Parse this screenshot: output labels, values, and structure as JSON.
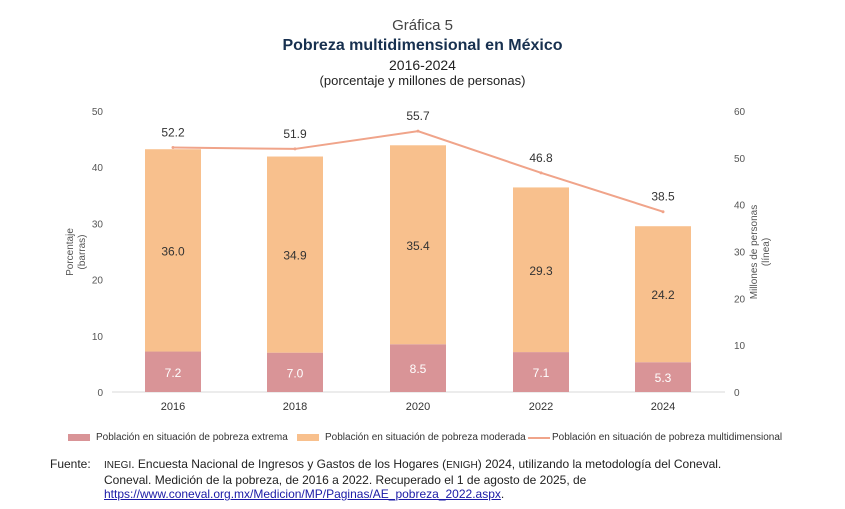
{
  "header": {
    "grafica": "Gráfica 5",
    "title": "Pobreza multidimensional en México",
    "period": "2016-2024",
    "units": "(porcentaje y millones de personas)"
  },
  "chart_data": {
    "type": "bar",
    "stacked": true,
    "categories": [
      "2016",
      "2018",
      "2020",
      "2022",
      "2024"
    ],
    "series": [
      {
        "name": "Población en situación de pobreza extrema",
        "kind": "bar",
        "axis": "left",
        "color": "#d99497",
        "values": [
          7.2,
          7.0,
          8.5,
          7.1,
          5.3
        ]
      },
      {
        "name": "Población en situación de pobreza moderada",
        "kind": "bar",
        "axis": "left",
        "color": "#f8c08d",
        "values": [
          36.0,
          34.9,
          35.4,
          29.3,
          24.2
        ]
      },
      {
        "name": "Población en situación de pobreza multidimensional",
        "kind": "line",
        "axis": "right",
        "color": "#f0a48a",
        "values": [
          52.2,
          51.9,
          55.7,
          46.8,
          38.5
        ]
      }
    ],
    "ylabel_left": "Porcentaje",
    "ylabel_left_sub": "(barras)",
    "ylabel_right": "Millones de personas",
    "ylabel_right_sub": "(línea)",
    "ylim_left": [
      0,
      50
    ],
    "yticks_left": [
      0,
      10,
      20,
      30,
      40,
      50
    ],
    "ylim_right": [
      0,
      60
    ],
    "yticks_right": [
      0,
      10,
      20,
      30,
      40,
      50,
      60
    ],
    "grid": false,
    "legend": "bottom"
  },
  "source": {
    "label": "Fuente:",
    "org": "INEGI",
    "text_1": ". Encuesta Nacional de Ingresos y Gastos de los Hogares (",
    "enigh": "ENIGH",
    "text_2": ") 2024, utilizando la metodología del Coneval.",
    "line2": "Coneval. Medición de la pobreza, de 2016 a 2022. Recuperado el 1 de agosto de 2025, de",
    "url": "https://www.coneval.org.mx/Medicion/MP/Paginas/AE_pobreza_2022.aspx",
    "end": "."
  }
}
